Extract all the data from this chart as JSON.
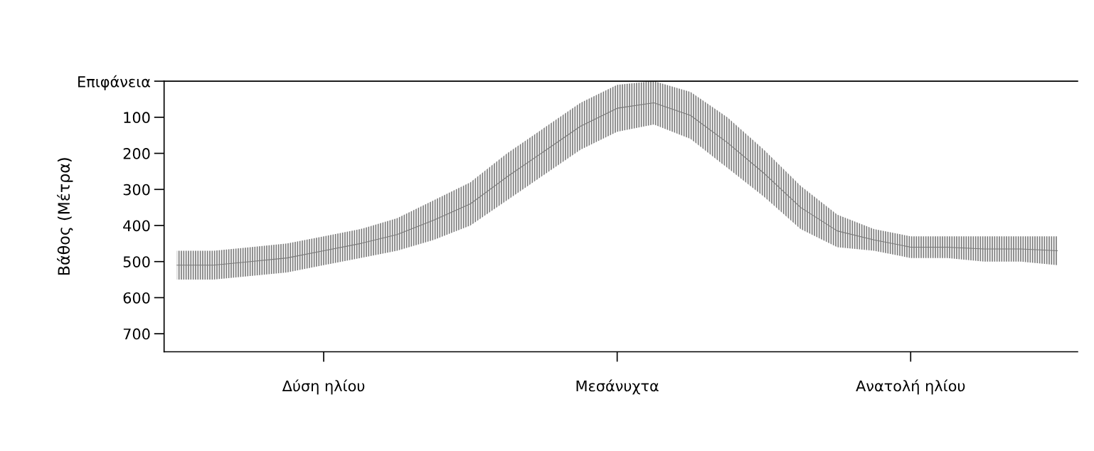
{
  "chart_data": {
    "type": "line",
    "ylabel": "Βάθος (Μέτρα)",
    "categories": [
      null,
      null,
      null,
      null,
      "Δύση ηλίου",
      null,
      null,
      null,
      null,
      null,
      null,
      null,
      "Μεσάνυχτα",
      null,
      null,
      null,
      null,
      null,
      null,
      null,
      "Ανατολή ηλίου",
      null,
      null,
      null,
      null
    ],
    "ylim": [
      750,
      0
    ],
    "yticks": [
      {
        "value": 0,
        "label": "Επιφάνεια"
      },
      100,
      200,
      300,
      400,
      500,
      600,
      700
    ],
    "grid": false,
    "marker": "none",
    "line_style": "solid",
    "series": [
      {
        "color": "#7a7a7a",
        "lower": [
          470,
          470,
          460,
          450,
          430,
          410,
          380,
          330,
          280,
          200,
          130,
          60,
          10,
          0,
          30,
          100,
          190,
          290,
          370,
          410,
          430,
          430,
          430,
          430,
          430
        ],
        "upper": [
          550,
          550,
          540,
          530,
          510,
          490,
          470,
          440,
          400,
          330,
          260,
          190,
          140,
          120,
          160,
          240,
          320,
          410,
          460,
          470,
          490,
          490,
          500,
          500,
          510
        ],
        "values": [
          510,
          510,
          500,
          490,
          470,
          450,
          425,
          385,
          340,
          265,
          195,
          125,
          75,
          60,
          95,
          170,
          255,
          350,
          415,
          440,
          460,
          460,
          465,
          465,
          470
        ]
      }
    ]
  }
}
